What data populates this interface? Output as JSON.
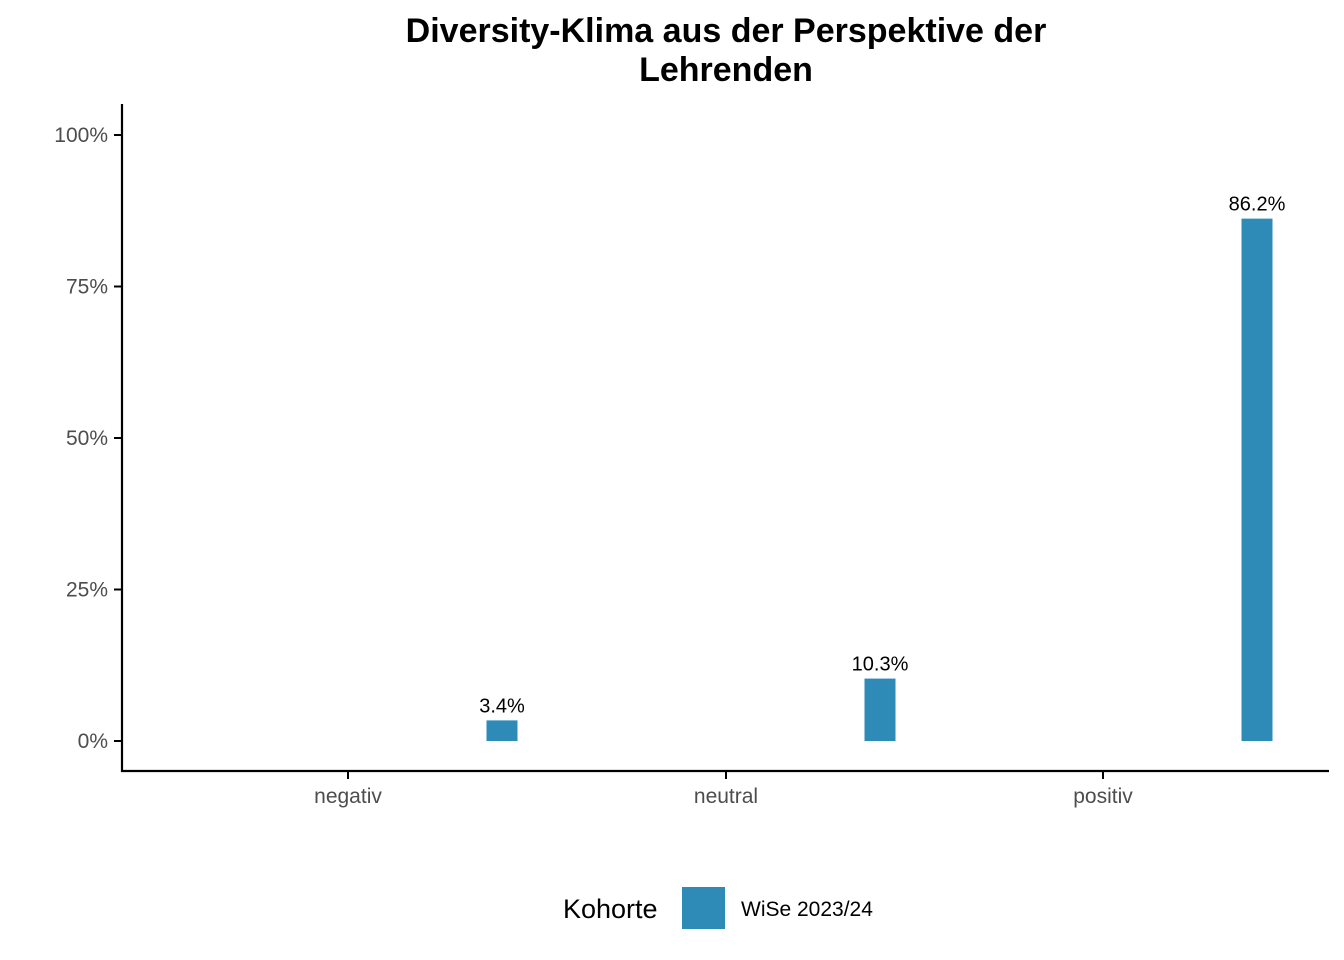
{
  "chart_data": {
    "type": "bar",
    "title_lines": [
      "Diversity-Klima aus der Perspektive der",
      "Lehrenden"
    ],
    "xlabel": "",
    "ylabel": "",
    "categories": [
      "negativ",
      "neutral",
      "positiv"
    ],
    "ylim": [
      0,
      1.05
    ],
    "y_ticks": [
      0,
      0.25,
      0.5,
      0.75,
      1.0
    ],
    "y_tick_labels": [
      "0%",
      "25%",
      "50%",
      "75%",
      "100%"
    ],
    "series": [
      {
        "name": "WiSe 2023/24",
        "color": "#2E8BB8",
        "values": [
          0.034,
          0.103,
          0.862
        ],
        "labels": [
          "3.4%",
          "10.3%",
          "86.2%"
        ]
      }
    ],
    "grid": false,
    "legend": {
      "title": "Kohorte",
      "position": "bottom"
    }
  }
}
